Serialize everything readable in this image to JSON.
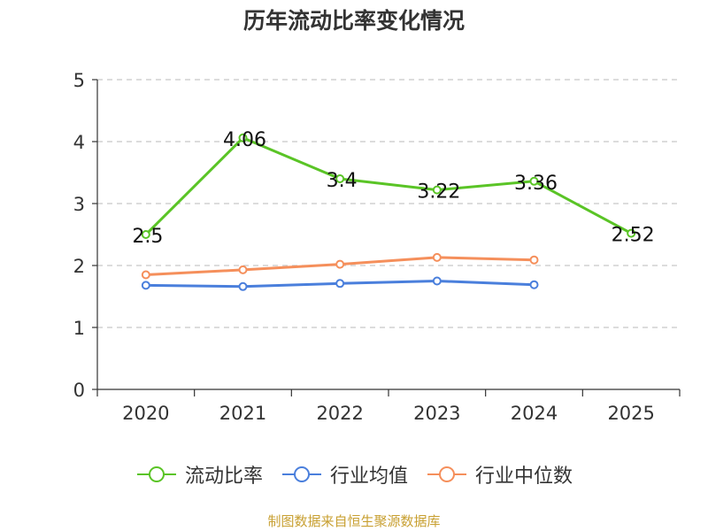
{
  "chart_data": {
    "type": "line",
    "title": "历年流动比率变化情况",
    "categories": [
      "2020",
      "2021",
      "2022",
      "2023",
      "2024",
      "2025"
    ],
    "y_ticks": [
      "0",
      "1",
      "2",
      "3",
      "4",
      "5"
    ],
    "ylim": [
      0,
      5
    ],
    "grid": true,
    "legend_position": "bottom",
    "series": [
      {
        "name": "流动比率",
        "color": "#5ac426",
        "values": [
          2.5,
          4.06,
          3.4,
          3.22,
          3.36,
          2.52
        ],
        "labels": [
          "2.5",
          "4.06",
          "3.4",
          "3.22",
          "3.36",
          "2.52"
        ]
      },
      {
        "name": "行业均值",
        "color": "#4a7fdc",
        "values": [
          1.68,
          1.66,
          1.71,
          1.75,
          1.69,
          null
        ]
      },
      {
        "name": "行业中位数",
        "color": "#f58f5b",
        "values": [
          1.85,
          1.93,
          2.02,
          2.13,
          2.09,
          null
        ]
      }
    ]
  },
  "source_text": "制图数据来自恒生聚源数据库"
}
